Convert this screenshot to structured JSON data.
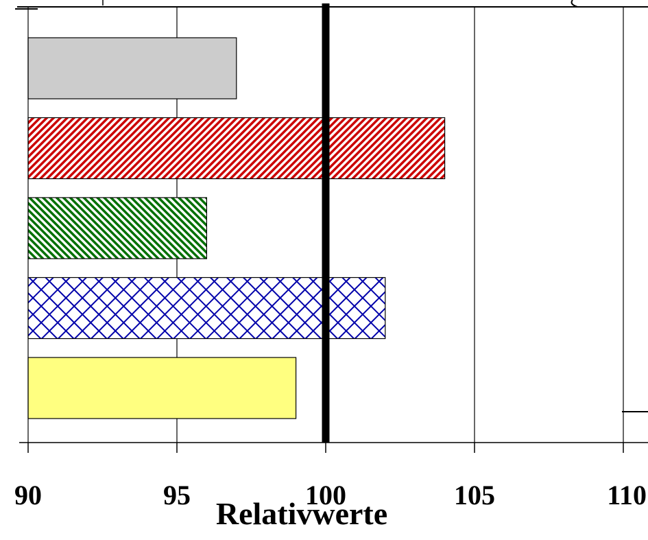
{
  "chart_data": {
    "type": "bar",
    "orientation": "horizontal",
    "title": "",
    "xlabel": "Relativwerte",
    "ylabel": "",
    "xlim": [
      90,
      110
    ],
    "xticks": [
      90,
      95,
      100,
      105,
      110
    ],
    "xtick_labels": [
      "90",
      "95",
      "100",
      "105",
      "110"
    ],
    "grid": true,
    "reference_line": 100,
    "bars": [
      {
        "value": 97,
        "color": "#cccccc",
        "pattern": "solid"
      },
      {
        "value": 104,
        "color": "#cc0000",
        "pattern": "diagonal"
      },
      {
        "value": 96,
        "color": "#007000",
        "pattern": "diagonal-reverse"
      },
      {
        "value": 102,
        "color": "#0000aa",
        "pattern": "crosshatch"
      },
      {
        "value": 99,
        "color": "#ffff80",
        "pattern": "solid"
      }
    ]
  }
}
